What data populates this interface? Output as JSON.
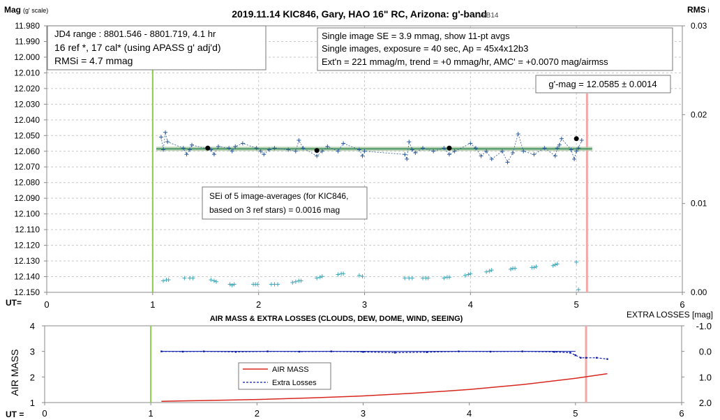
{
  "top_chart": {
    "title": "2019.11.14 KIC846, Gary, HAO 16\" RC, Arizona: g'-band",
    "version": "- v9B14",
    "y_label": "Mag",
    "y_label_suffix": "(g' scale)",
    "y2_label": "RMS",
    "y2_label_suffix": "i",
    "x_label": "UT=",
    "y_ticks": [
      "11.980",
      "11.990",
      "12.000",
      "12.010",
      "12.020",
      "12.030",
      "12.040",
      "12.050",
      "12.060",
      "12.070",
      "12.080",
      "12.090",
      "12.100",
      "12.110",
      "12.120",
      "12.130",
      "12.140",
      "12.150"
    ],
    "y2_ticks": [
      "0.03",
      "0.02",
      "0.01",
      "0.00"
    ],
    "x_ticks": [
      "0",
      "1",
      "2",
      "3",
      "4",
      "5",
      "6"
    ],
    "box_left": [
      "JD4 range : 8801.546 - 8801.719,  4.1  hr",
      "16 ref *, 17 cal* (using APASS g' adj'd)",
      "RMSi = 4.7 mmag"
    ],
    "box_right": [
      "Single image SE = 3.9 mmag, show  11-pt avgs",
      "Single images, exposure = 40 sec, Ap = 45x4x12b3",
      "Ext'n = 221 mmag/m, trend =  +0 mmag/hr, AMC' = +0.0070 mag/airmss"
    ],
    "box_gmag": "g'-mag = 12.0585 ± 0.0014",
    "box_sei": [
      "SEi of 5 image-averages (for KIC846,",
      "based on 3 ref stars) = 0.0016 mag"
    ]
  },
  "bottom_chart": {
    "title": "AIR MASS & EXTRA LOSSES (CLOUDS, DEW, DOME, WIND, SEEING)",
    "y_label": "AIR MASS",
    "y2_label": "EXTRA LOSSES [mag]",
    "x_label": "UT =",
    "y_ticks": [
      "4",
      "3",
      "2",
      "1"
    ],
    "y2_ticks": [
      "-1.0",
      "0.0",
      "1.0",
      "2.0"
    ],
    "x_ticks": [
      "0",
      "1",
      "2",
      "3",
      "4",
      "5",
      "6"
    ],
    "legend": [
      "AIR MASS",
      "Extra Losses"
    ]
  },
  "colors": {
    "data_blue": "#2e5c9a",
    "rms_cyan": "#3fa7b8",
    "fit_green": "#2e8b57",
    "band": "#a9c6a2",
    "start_line": "#8ccc4c",
    "end_line": "#f4a7a7",
    "airmass_red": "#d7261e",
    "losses_blue": "#0a1aa8",
    "grid": "#c8c8c8"
  },
  "chart_data": [
    {
      "type": "scatter",
      "title": "2019.11.14 KIC846, Gary, HAO 16\" RC, Arizona: g'-band",
      "xlabel": "UT=",
      "ylabel": "Mag (g' scale)",
      "y2label": "RMSi",
      "xlim": [
        0,
        6
      ],
      "ylim": [
        12.15,
        11.98
      ],
      "y2lim": [
        0,
        0.03
      ],
      "grid": true,
      "markers": {
        "start": 1.0,
        "end": 5.1
      },
      "fit_mag": 12.0585,
      "fit_x": [
        1.1,
        5.05
      ],
      "series": [
        {
          "name": "single images",
          "x": [
            1.08,
            1.1,
            1.12,
            1.14,
            1.29,
            1.32,
            1.35,
            1.37,
            1.55,
            1.58,
            1.62,
            1.72,
            1.75,
            1.78,
            1.85,
            1.98,
            2.02,
            2.05,
            2.1,
            2.15,
            2.28,
            2.35,
            2.38,
            2.42,
            2.55,
            2.6,
            2.65,
            2.75,
            2.8,
            2.95,
            2.98,
            3.0,
            3.38,
            3.4,
            3.42,
            3.45,
            3.48,
            3.55,
            3.65,
            3.75,
            3.8,
            3.85,
            4.0,
            4.05,
            4.1,
            4.15,
            4.2,
            4.3,
            4.35,
            4.4,
            4.45,
            4.5,
            4.6,
            4.7,
            4.8,
            4.82,
            4.84,
            4.86,
            4.95,
            4.98,
            5.0,
            5.02,
            5.05
          ],
          "y": [
            12.051,
            12.059,
            12.048,
            12.054,
            12.058,
            12.062,
            12.059,
            12.056,
            12.059,
            12.062,
            12.057,
            12.058,
            12.06,
            12.057,
            12.055,
            12.058,
            12.06,
            12.062,
            12.059,
            12.058,
            12.059,
            12.06,
            12.053,
            12.058,
            12.063,
            12.06,
            12.057,
            12.06,
            12.055,
            12.059,
            12.063,
            12.06,
            12.062,
            12.065,
            12.054,
            12.059,
            12.061,
            12.058,
            12.06,
            12.058,
            12.062,
            12.06,
            12.055,
            12.058,
            12.063,
            12.06,
            12.065,
            12.06,
            12.067,
            12.061,
            12.049,
            12.06,
            12.062,
            12.058,
            12.063,
            12.058,
            12.056,
            12.052,
            12.059,
            12.065,
            12.06,
            12.058,
            12.053
          ]
        },
        {
          "name": "5-image averages",
          "x": [
            1.52,
            2.55,
            3.8,
            5.0
          ],
          "y": [
            12.058,
            12.0595,
            12.058,
            12.052
          ]
        },
        {
          "name": "RMSi",
          "axis": "right",
          "x": [
            1.1,
            1.13,
            1.15,
            1.3,
            1.35,
            1.38,
            1.55,
            1.58,
            1.6,
            1.73,
            1.75,
            1.77,
            1.95,
            1.97,
            1.99,
            2.12,
            2.15,
            2.18,
            2.32,
            2.35,
            2.38,
            2.4,
            2.55,
            2.58,
            2.6,
            2.75,
            2.78,
            2.8,
            2.95,
            2.98,
            3.38,
            3.42,
            3.45,
            3.55,
            3.58,
            3.6,
            3.75,
            3.78,
            3.8,
            3.95,
            3.98,
            4.0,
            4.15,
            4.18,
            4.2,
            4.38,
            4.4,
            4.42,
            4.58,
            4.6,
            4.62,
            4.78,
            4.8,
            4.82,
            5.0,
            5.02
          ],
          "y": [
            0.0013,
            0.0014,
            0.0014,
            0.0016,
            0.0016,
            0.0016,
            0.0014,
            0.0013,
            0.0012,
            0.0009,
            0.0008,
            0.0009,
            0.0009,
            0.0009,
            0.0009,
            0.0009,
            0.0009,
            0.0009,
            0.0011,
            0.0012,
            0.0013,
            0.0013,
            0.0016,
            0.0017,
            0.0018,
            0.002,
            0.0021,
            0.0021,
            0.0019,
            0.0018,
            0.0016,
            0.0016,
            0.0016,
            0.0016,
            0.0016,
            0.0016,
            0.0016,
            0.0017,
            0.0017,
            0.0019,
            0.002,
            0.0021,
            0.0023,
            0.0024,
            0.0025,
            0.0026,
            0.0027,
            0.0027,
            0.0028,
            0.0028,
            0.0029,
            0.003,
            0.0031,
            0.0032,
            0.0034,
            0.0003
          ]
        }
      ]
    },
    {
      "type": "line",
      "title": "AIR MASS & EXTRA LOSSES (CLOUDS, DEW, DOME, WIND, SEEING)",
      "xlabel": "UT =",
      "ylabel": "AIR MASS",
      "y2label": "EXTRA LOSSES [mag]",
      "xlim": [
        0,
        6
      ],
      "ylim": [
        1,
        4
      ],
      "y2lim": [
        -1.0,
        2.0
      ],
      "legend_position": "center-left",
      "markers": {
        "start": 1.0,
        "end": 5.1
      },
      "series": [
        {
          "name": "AIR MASS",
          "x": [
            1.1,
            1.5,
            2.0,
            2.5,
            3.0,
            3.5,
            4.0,
            4.5,
            5.0,
            5.3
          ],
          "y": [
            1.05,
            1.08,
            1.12,
            1.18,
            1.26,
            1.37,
            1.51,
            1.7,
            1.95,
            2.13
          ]
        },
        {
          "name": "Extra Losses",
          "axis": "right",
          "x": [
            1.1,
            1.3,
            1.5,
            1.8,
            2.1,
            2.4,
            2.7,
            3.0,
            3.3,
            3.6,
            3.9,
            4.2,
            4.5,
            4.8,
            4.95,
            5.0,
            5.05,
            5.1,
            5.2,
            5.3
          ],
          "y": [
            0.0,
            0.01,
            0.0,
            0.02,
            0.0,
            0.01,
            0.0,
            0.02,
            0.05,
            0.03,
            0.0,
            0.01,
            0.0,
            0.02,
            0.05,
            0.15,
            0.25,
            0.25,
            0.25,
            0.3
          ]
        }
      ]
    }
  ]
}
